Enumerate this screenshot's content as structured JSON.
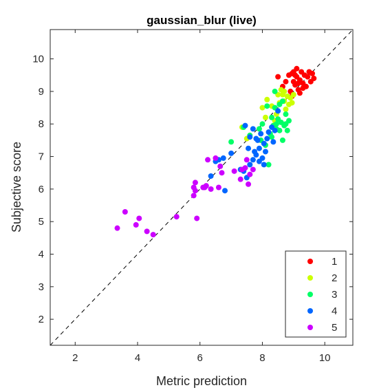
{
  "chart_data": {
    "type": "scatter",
    "title": "gaussian_blur (live)",
    "xlabel": "Metric prediction",
    "ylabel": "Subjective score",
    "xlim": [
      1.2,
      10.9
    ],
    "ylim": [
      1.2,
      10.9
    ],
    "xticks": [
      2,
      4,
      6,
      8,
      10
    ],
    "yticks": [
      2,
      3,
      4,
      5,
      6,
      7,
      8,
      9,
      10
    ],
    "grid": false,
    "diagonal_reference_line": true,
    "legend_position": "bottom-right",
    "series": [
      {
        "name": "1",
        "color": "#ff0000",
        "points": [
          [
            8.5,
            9.45
          ],
          [
            8.65,
            9.15
          ],
          [
            8.75,
            9.3
          ],
          [
            8.85,
            9.5
          ],
          [
            8.9,
            9.0
          ],
          [
            8.95,
            9.55
          ],
          [
            9.0,
            9.3
          ],
          [
            9.0,
            9.6
          ],
          [
            9.05,
            9.2
          ],
          [
            9.1,
            9.7
          ],
          [
            9.1,
            9.45
          ],
          [
            9.15,
            9.05
          ],
          [
            9.2,
            9.35
          ],
          [
            9.25,
            9.6
          ],
          [
            9.3,
            9.25
          ],
          [
            9.35,
            9.5
          ],
          [
            9.4,
            9.15
          ],
          [
            9.45,
            9.45
          ],
          [
            9.5,
            9.6
          ],
          [
            9.55,
            9.3
          ],
          [
            9.6,
            9.55
          ],
          [
            9.65,
            9.4
          ],
          [
            9.2,
            8.95
          ],
          [
            9.15,
            9.25
          ],
          [
            8.95,
            8.85
          ],
          [
            9.3,
            9.1
          ],
          [
            9.05,
            9.5
          ]
        ]
      },
      {
        "name": "2",
        "color": "#ccff00",
        "points": [
          [
            8.0,
            8.5
          ],
          [
            8.15,
            8.75
          ],
          [
            8.3,
            8.55
          ],
          [
            8.45,
            8.3
          ],
          [
            8.55,
            8.65
          ],
          [
            8.6,
            9.05
          ],
          [
            8.65,
            8.9
          ],
          [
            8.7,
            8.7
          ],
          [
            8.75,
            8.45
          ],
          [
            8.8,
            8.85
          ],
          [
            8.85,
            8.6
          ],
          [
            8.9,
            8.8
          ],
          [
            8.95,
            8.65
          ],
          [
            9.0,
            8.9
          ],
          [
            8.4,
            8.1
          ],
          [
            8.5,
            8.9
          ],
          [
            7.35,
            7.9
          ],
          [
            7.5,
            7.55
          ],
          [
            8.1,
            8.2
          ],
          [
            8.7,
            9.0
          ]
        ]
      },
      {
        "name": "3",
        "color": "#00ff66",
        "points": [
          [
            7.0,
            7.45
          ],
          [
            7.4,
            7.9
          ],
          [
            7.6,
            7.65
          ],
          [
            7.9,
            7.85
          ],
          [
            8.0,
            8.0
          ],
          [
            8.1,
            7.35
          ],
          [
            8.2,
            6.75
          ],
          [
            8.25,
            7.7
          ],
          [
            8.3,
            8.2
          ],
          [
            8.35,
            7.95
          ],
          [
            8.4,
            8.5
          ],
          [
            8.45,
            7.85
          ],
          [
            8.5,
            8.15
          ],
          [
            8.55,
            8.6
          ],
          [
            8.6,
            8.05
          ],
          [
            8.65,
            7.5
          ],
          [
            8.7,
            7.95
          ],
          [
            8.75,
            8.3
          ],
          [
            8.8,
            7.8
          ],
          [
            8.85,
            8.1
          ],
          [
            8.4,
            9.0
          ],
          [
            8.55,
            7.8
          ],
          [
            8.15,
            8.55
          ],
          [
            8.65,
            8.7
          ],
          [
            8.45,
            8.0
          ],
          [
            8.3,
            7.6
          ],
          [
            7.95,
            7.5
          ],
          [
            8.75,
            8.0
          ]
        ]
      },
      {
        "name": "4",
        "color": "#0066ff",
        "points": [
          [
            6.35,
            6.4
          ],
          [
            6.5,
            6.85
          ],
          [
            6.6,
            6.9
          ],
          [
            6.75,
            6.95
          ],
          [
            6.8,
            5.95
          ],
          [
            7.0,
            7.1
          ],
          [
            7.3,
            6.6
          ],
          [
            7.4,
            6.55
          ],
          [
            7.5,
            6.35
          ],
          [
            7.55,
            7.25
          ],
          [
            7.6,
            7.6
          ],
          [
            7.7,
            6.9
          ],
          [
            7.75,
            7.15
          ],
          [
            7.8,
            7.05
          ],
          [
            7.85,
            7.5
          ],
          [
            7.9,
            7.25
          ],
          [
            7.95,
            7.7
          ],
          [
            8.0,
            6.95
          ],
          [
            8.05,
            7.4
          ],
          [
            8.1,
            7.15
          ],
          [
            8.15,
            7.55
          ],
          [
            8.2,
            7.75
          ],
          [
            8.3,
            7.9
          ],
          [
            8.4,
            7.8
          ],
          [
            8.5,
            8.4
          ],
          [
            8.35,
            7.45
          ],
          [
            7.7,
            7.85
          ],
          [
            7.45,
            7.95
          ],
          [
            7.6,
            6.75
          ],
          [
            7.9,
            6.85
          ],
          [
            8.05,
            6.75
          ],
          [
            7.8,
            7.55
          ]
        ]
      },
      {
        "name": "5",
        "color": "#cc00ff",
        "points": [
          [
            3.35,
            4.8
          ],
          [
            3.6,
            5.3
          ],
          [
            3.95,
            4.9
          ],
          [
            4.05,
            5.1
          ],
          [
            4.3,
            4.7
          ],
          [
            4.5,
            4.6
          ],
          [
            5.25,
            5.15
          ],
          [
            5.8,
            5.8
          ],
          [
            5.8,
            6.05
          ],
          [
            5.85,
            6.2
          ],
          [
            5.9,
            5.1
          ],
          [
            6.1,
            6.05
          ],
          [
            6.2,
            6.1
          ],
          [
            6.25,
            6.9
          ],
          [
            6.35,
            6.0
          ],
          [
            6.5,
            6.95
          ],
          [
            6.6,
            6.05
          ],
          [
            6.65,
            6.7
          ],
          [
            6.7,
            6.5
          ],
          [
            7.1,
            6.55
          ],
          [
            7.3,
            6.3
          ],
          [
            7.35,
            6.6
          ],
          [
            7.45,
            6.65
          ],
          [
            7.55,
            6.15
          ],
          [
            7.6,
            6.45
          ],
          [
            7.5,
            6.9
          ],
          [
            7.7,
            6.6
          ],
          [
            6.15,
            6.05
          ],
          [
            5.85,
            5.95
          ]
        ]
      }
    ]
  }
}
